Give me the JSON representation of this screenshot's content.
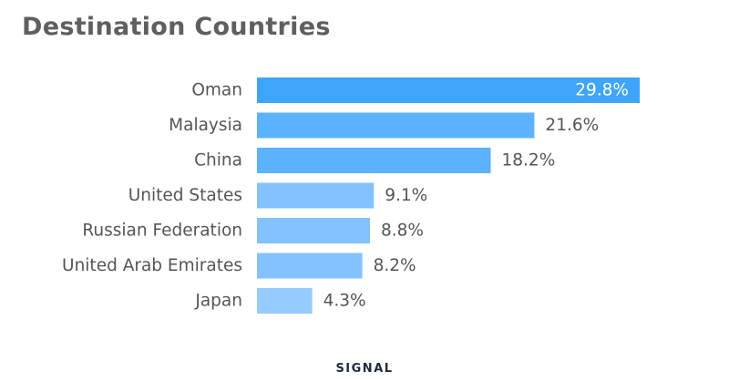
{
  "chart_data": {
    "type": "bar",
    "orientation": "horizontal",
    "title": "Destination Countries",
    "categories": [
      "Oman",
      "Malaysia",
      "China",
      "United States",
      "Russian Federation",
      "United Arab Emirates",
      "Japan"
    ],
    "values": [
      29.8,
      21.6,
      18.2,
      9.1,
      8.8,
      8.2,
      4.3
    ],
    "value_labels": [
      "29.8%",
      "21.6%",
      "18.2%",
      "9.1%",
      "8.8%",
      "8.2%",
      "4.3%"
    ],
    "unit": "%",
    "xlim": [
      0,
      29.8
    ],
    "grid": false,
    "legend": "none",
    "bar_colors": [
      "#3fa5fb",
      "#5cb2fc",
      "#5cb2fc",
      "#83c2fd",
      "#83c2fd",
      "#83c2fd",
      "#95cbfd"
    ],
    "label_color": "#555555",
    "inside_label_color": "#ffffff"
  },
  "brand": {
    "name": "SIGNAL"
  }
}
